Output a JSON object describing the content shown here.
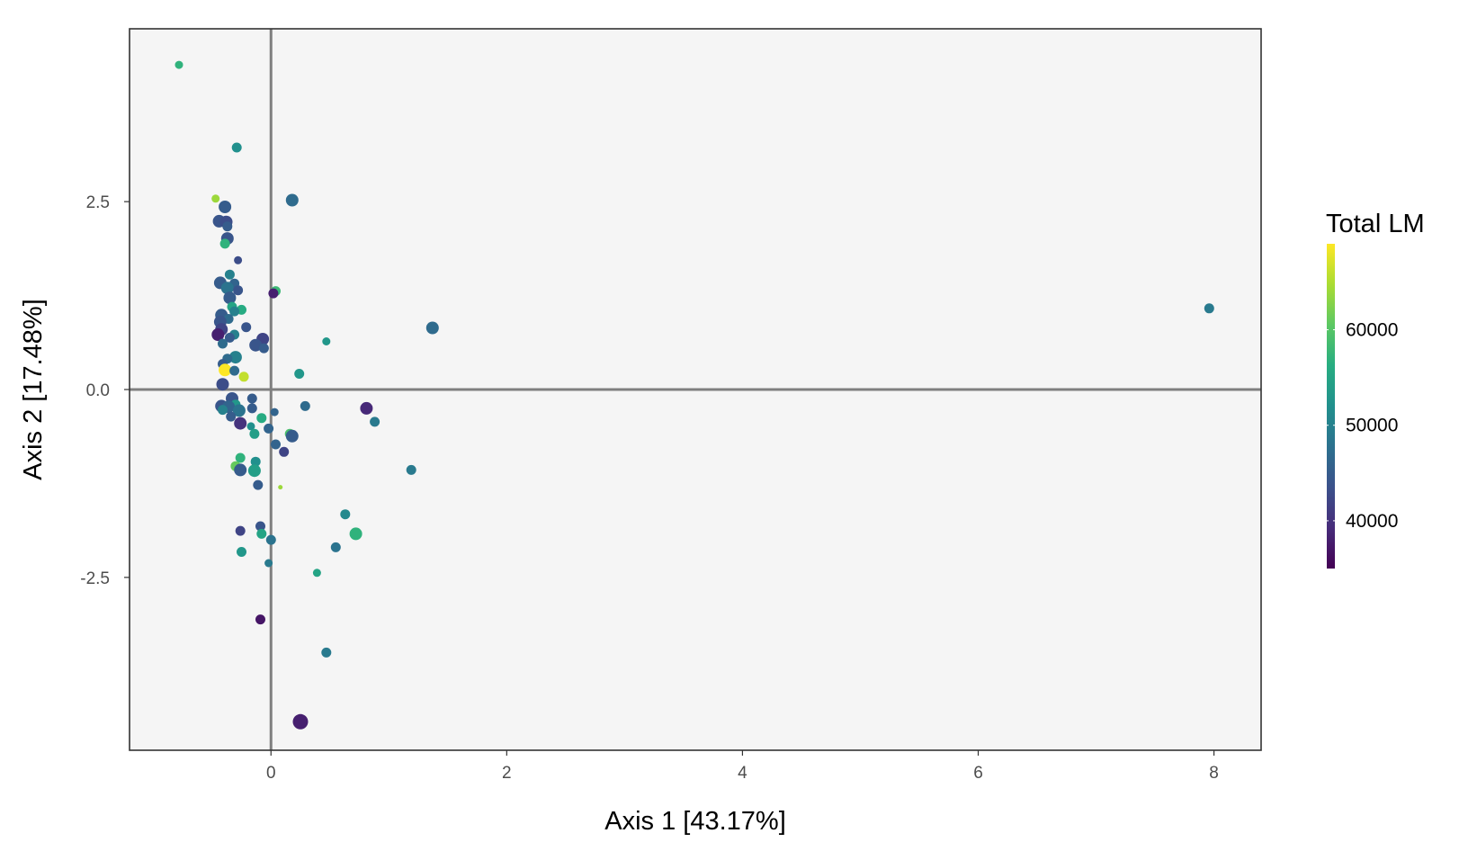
{
  "chart_data": {
    "type": "scatter",
    "title": "",
    "xlabel": "Axis 1 [43.17%]",
    "ylabel": "Axis 2 [17.48%]",
    "xlim": [
      -1.2,
      8.4
    ],
    "ylim": [
      -4.8,
      4.8
    ],
    "x_ticks": [
      0,
      2,
      4,
      6,
      8
    ],
    "x_tick_labels": [
      "0",
      "2",
      "4",
      "6",
      "8"
    ],
    "y_ticks": [
      2.5,
      0,
      -2.5
    ],
    "y_tick_labels": [
      "2.5",
      "0.0",
      "-2.5"
    ],
    "reference_lines": {
      "x": 0,
      "y": 0
    },
    "grid": false,
    "panel_background": "#f5f5f5",
    "color_scale": {
      "name": "viridis",
      "title": "Total LM",
      "min": 35000,
      "max": 69000,
      "ticks": [
        40000,
        50000,
        60000
      ],
      "tick_labels": [
        "40000",
        "50000",
        "60000"
      ],
      "legend_position": "right"
    },
    "points": [
      {
        "x": -0.78,
        "y": 4.32,
        "c": 57000,
        "s": 1
      },
      {
        "x": -0.29,
        "y": 3.22,
        "c": 52000,
        "s": 2
      },
      {
        "x": -0.47,
        "y": 2.54,
        "c": 64000,
        "s": 1
      },
      {
        "x": 0.18,
        "y": 2.52,
        "c": 47000,
        "s": 3
      },
      {
        "x": -0.39,
        "y": 2.43,
        "c": 45000,
        "s": 3
      },
      {
        "x": -0.44,
        "y": 2.24,
        "c": 44000,
        "s": 3
      },
      {
        "x": -0.38,
        "y": 2.23,
        "c": 43000,
        "s": 3
      },
      {
        "x": -0.37,
        "y": 2.17,
        "c": 45000,
        "s": 2
      },
      {
        "x": -0.37,
        "y": 2.01,
        "c": 44000,
        "s": 3
      },
      {
        "x": -0.39,
        "y": 1.94,
        "c": 57000,
        "s": 2
      },
      {
        "x": -0.28,
        "y": 1.72,
        "c": 43000,
        "s": 1
      },
      {
        "x": -0.35,
        "y": 1.53,
        "c": 50000,
        "s": 2
      },
      {
        "x": -0.43,
        "y": 1.42,
        "c": 45000,
        "s": 3
      },
      {
        "x": -0.31,
        "y": 1.41,
        "c": 46000,
        "s": 2
      },
      {
        "x": -0.37,
        "y": 1.35,
        "c": 48000,
        "s": 3
      },
      {
        "x": -0.28,
        "y": 1.32,
        "c": 44000,
        "s": 2
      },
      {
        "x": 0.04,
        "y": 1.31,
        "c": 58000,
        "s": 2
      },
      {
        "x": 0.02,
        "y": 1.28,
        "c": 38000,
        "s": 2
      },
      {
        "x": -0.35,
        "y": 1.22,
        "c": 45000,
        "s": 3
      },
      {
        "x": -0.33,
        "y": 1.1,
        "c": 55000,
        "s": 2
      },
      {
        "x": -0.25,
        "y": 1.06,
        "c": 56000,
        "s": 2
      },
      {
        "x": -0.31,
        "y": 1.04,
        "c": 50000,
        "s": 2
      },
      {
        "x": 7.96,
        "y": 1.08,
        "c": 49000,
        "s": 2
      },
      {
        "x": -0.42,
        "y": 0.99,
        "c": 45000,
        "s": 3
      },
      {
        "x": -0.36,
        "y": 0.94,
        "c": 47000,
        "s": 2
      },
      {
        "x": -0.43,
        "y": 0.9,
        "c": 44000,
        "s": 3
      },
      {
        "x": -0.21,
        "y": 0.83,
        "c": 44000,
        "s": 2
      },
      {
        "x": 1.37,
        "y": 0.82,
        "c": 47000,
        "s": 3
      },
      {
        "x": -0.42,
        "y": 0.8,
        "c": 42000,
        "s": 3
      },
      {
        "x": -0.45,
        "y": 0.73,
        "c": 38000,
        "s": 3
      },
      {
        "x": -0.31,
        "y": 0.73,
        "c": 50000,
        "s": 2
      },
      {
        "x": -0.35,
        "y": 0.69,
        "c": 45000,
        "s": 2
      },
      {
        "x": -0.07,
        "y": 0.67,
        "c": 42000,
        "s": 3
      },
      {
        "x": 0.47,
        "y": 0.64,
        "c": 53000,
        "s": 1
      },
      {
        "x": -0.41,
        "y": 0.61,
        "c": 47000,
        "s": 2
      },
      {
        "x": -0.13,
        "y": 0.59,
        "c": 44000,
        "s": 3
      },
      {
        "x": -0.06,
        "y": 0.55,
        "c": 45000,
        "s": 2
      },
      {
        "x": -0.3,
        "y": 0.43,
        "c": 50000,
        "s": 3
      },
      {
        "x": -0.37,
        "y": 0.41,
        "c": 47000,
        "s": 2
      },
      {
        "x": -0.41,
        "y": 0.34,
        "c": 45000,
        "s": 2
      },
      {
        "x": -0.39,
        "y": 0.26,
        "c": 69000,
        "s": 3
      },
      {
        "x": -0.31,
        "y": 0.25,
        "c": 47000,
        "s": 2
      },
      {
        "x": 0.24,
        "y": 0.21,
        "c": 53000,
        "s": 2
      },
      {
        "x": -0.23,
        "y": 0.17,
        "c": 66000,
        "s": 2
      },
      {
        "x": -0.41,
        "y": 0.07,
        "c": 43000,
        "s": 3
      },
      {
        "x": -0.33,
        "y": -0.12,
        "c": 44000,
        "s": 3
      },
      {
        "x": -0.16,
        "y": -0.12,
        "c": 45000,
        "s": 2
      },
      {
        "x": -0.3,
        "y": -0.2,
        "c": 53000,
        "s": 2
      },
      {
        "x": -0.42,
        "y": -0.22,
        "c": 44000,
        "s": 3
      },
      {
        "x": -0.36,
        "y": -0.23,
        "c": 46000,
        "s": 3
      },
      {
        "x": 0.29,
        "y": -0.22,
        "c": 47000,
        "s": 2
      },
      {
        "x": 0.81,
        "y": -0.25,
        "c": 39000,
        "s": 3
      },
      {
        "x": -0.41,
        "y": -0.27,
        "c": 50000,
        "s": 2
      },
      {
        "x": -0.16,
        "y": -0.25,
        "c": 45000,
        "s": 2
      },
      {
        "x": -0.27,
        "y": -0.28,
        "c": 48000,
        "s": 3
      },
      {
        "x": 0.03,
        "y": -0.3,
        "c": 46000,
        "s": 1
      },
      {
        "x": -0.34,
        "y": -0.36,
        "c": 45000,
        "s": 2
      },
      {
        "x": -0.08,
        "y": -0.38,
        "c": 56000,
        "s": 2
      },
      {
        "x": 0.88,
        "y": -0.43,
        "c": 49000,
        "s": 2
      },
      {
        "x": -0.26,
        "y": -0.45,
        "c": 40000,
        "s": 3
      },
      {
        "x": -0.17,
        "y": -0.49,
        "c": 52000,
        "s": 1
      },
      {
        "x": -0.02,
        "y": -0.52,
        "c": 46000,
        "s": 2
      },
      {
        "x": 0.16,
        "y": -0.59,
        "c": 59000,
        "s": 2
      },
      {
        "x": -0.14,
        "y": -0.59,
        "c": 54000,
        "s": 2
      },
      {
        "x": 0.18,
        "y": -0.62,
        "c": 45000,
        "s": 3
      },
      {
        "x": 0.04,
        "y": -0.73,
        "c": 46000,
        "s": 2
      },
      {
        "x": 0.11,
        "y": -0.83,
        "c": 42000,
        "s": 2
      },
      {
        "x": -0.26,
        "y": -0.91,
        "c": 57000,
        "s": 2
      },
      {
        "x": -0.13,
        "y": -0.96,
        "c": 52000,
        "s": 2
      },
      {
        "x": -0.3,
        "y": -1.02,
        "c": 61000,
        "s": 2
      },
      {
        "x": -0.26,
        "y": -1.07,
        "c": 45000,
        "s": 3
      },
      {
        "x": -0.14,
        "y": -1.08,
        "c": 54000,
        "s": 3
      },
      {
        "x": 1.19,
        "y": -1.07,
        "c": 49000,
        "s": 2
      },
      {
        "x": -0.11,
        "y": -1.27,
        "c": 45000,
        "s": 2
      },
      {
        "x": 0.08,
        "y": -1.3,
        "c": 64000,
        "s": 0
      },
      {
        "x": 0.63,
        "y": -1.66,
        "c": 51000,
        "s": 2
      },
      {
        "x": -0.09,
        "y": -1.82,
        "c": 44000,
        "s": 2
      },
      {
        "x": -0.26,
        "y": -1.88,
        "c": 42000,
        "s": 2
      },
      {
        "x": -0.08,
        "y": -1.92,
        "c": 55000,
        "s": 2
      },
      {
        "x": 0.72,
        "y": -1.92,
        "c": 57000,
        "s": 3
      },
      {
        "x": 0.0,
        "y": -2.0,
        "c": 48000,
        "s": 2
      },
      {
        "x": 0.55,
        "y": -2.1,
        "c": 48000,
        "s": 2
      },
      {
        "x": -0.25,
        "y": -2.16,
        "c": 53000,
        "s": 2
      },
      {
        "x": -0.02,
        "y": -2.31,
        "c": 49000,
        "s": 1
      },
      {
        "x": 0.39,
        "y": -2.44,
        "c": 55000,
        "s": 1
      },
      {
        "x": -0.09,
        "y": -3.06,
        "c": 37000,
        "s": 2
      },
      {
        "x": 0.47,
        "y": -3.5,
        "c": 49000,
        "s": 2
      },
      {
        "x": 0.25,
        "y": -4.42,
        "c": 38000,
        "s": 4
      }
    ]
  }
}
